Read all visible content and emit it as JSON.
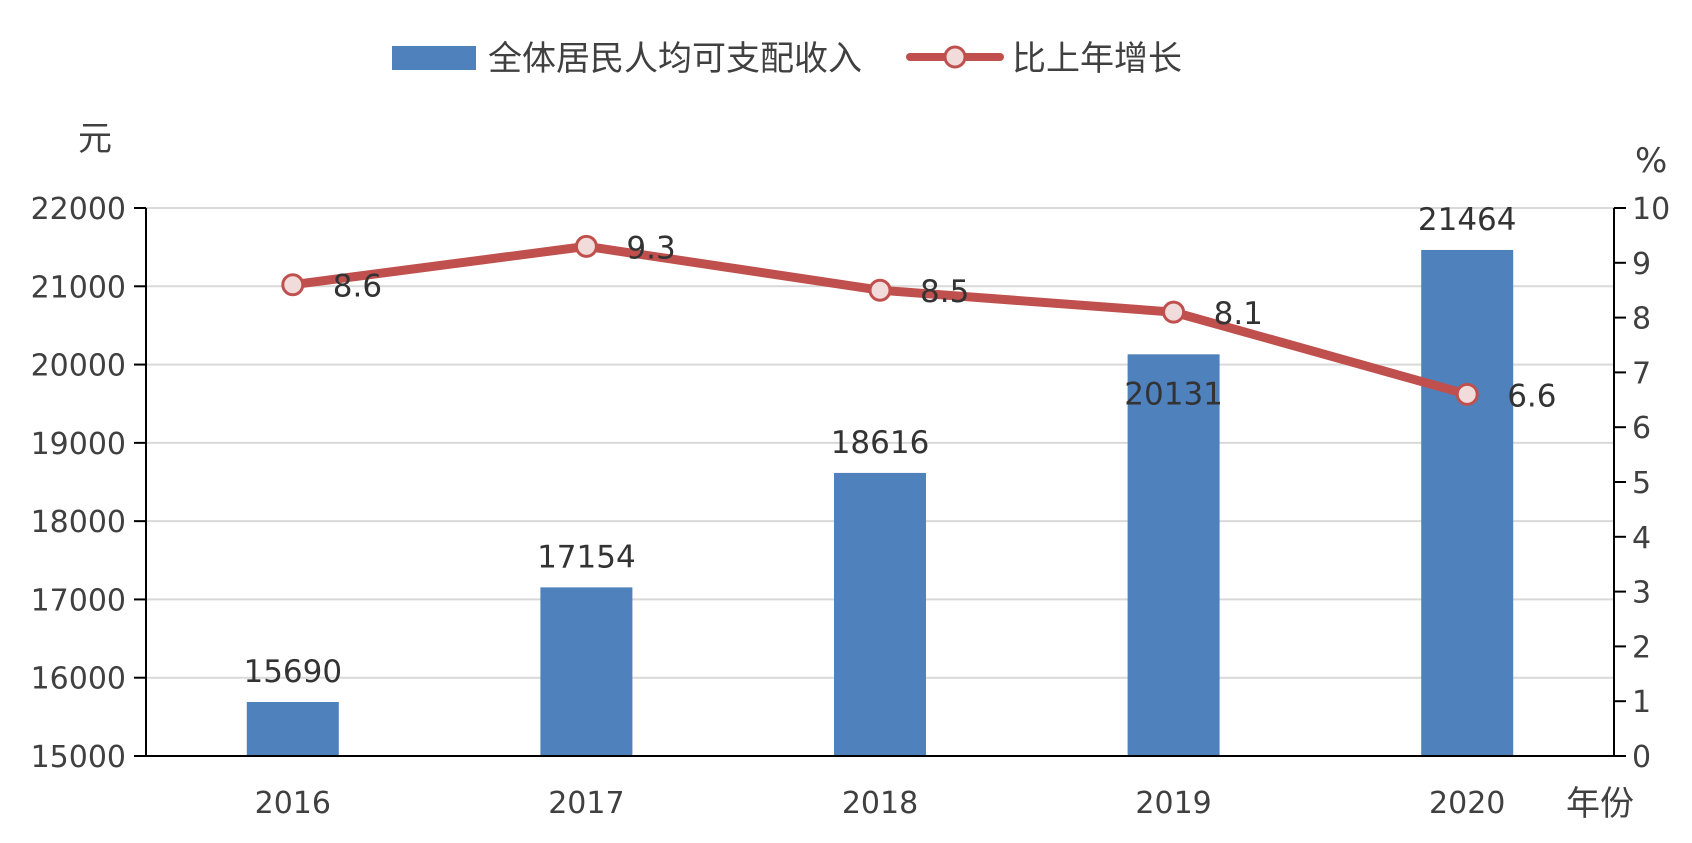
{
  "chart_data": {
    "type": "bar",
    "categories": [
      "2016",
      "2017",
      "2018",
      "2019",
      "2020"
    ],
    "series": [
      {
        "name": "全体居民人均可支配收入",
        "type": "bar",
        "axis": "left",
        "color": "#4f81bd",
        "values": [
          15690,
          17154,
          18616,
          20131,
          21464
        ],
        "labels": [
          "15690",
          "17154",
          "18616",
          "20131",
          "21464"
        ]
      },
      {
        "name": "比上年增长",
        "type": "line",
        "axis": "right",
        "color": "#c0504d",
        "marker_fill": "#f2dcdb",
        "values": [
          8.6,
          9.3,
          8.5,
          8.1,
          6.6
        ],
        "labels": [
          "8.6",
          "9.3",
          "8.5",
          "8.1",
          "6.6"
        ]
      }
    ],
    "y_left": {
      "unit": "元",
      "ylim": [
        15000,
        22000
      ],
      "ticks": [
        "15000",
        "16000",
        "17000",
        "18000",
        "19000",
        "20000",
        "21000",
        "22000"
      ]
    },
    "y_right": {
      "unit": "%",
      "ylim": [
        0,
        10
      ],
      "ticks": [
        "0",
        "1",
        "2",
        "3",
        "4",
        "5",
        "6",
        "7",
        "8",
        "9",
        "10"
      ]
    },
    "x_unit": "年份",
    "grid": true,
    "legend_position": "top-center"
  }
}
